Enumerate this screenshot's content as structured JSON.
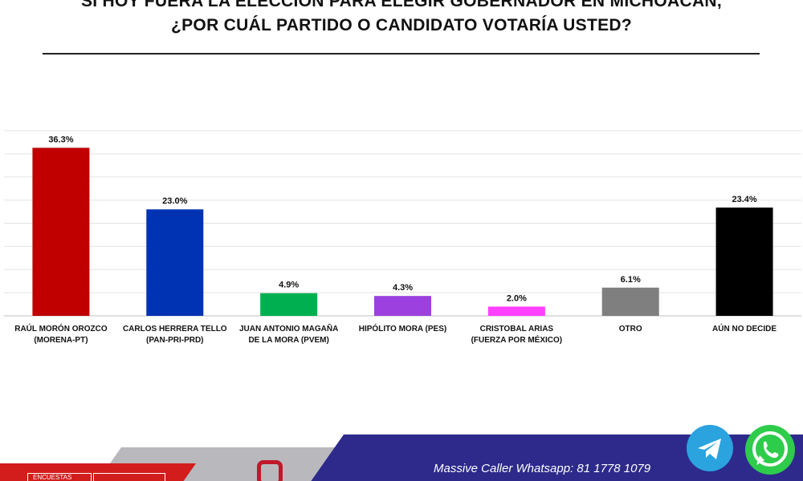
{
  "header": {
    "title_line1": "SI HOY FUERA LA ELECCIÓN PARA ELEGIR GOBERNADOR EN MICHOACÁN,",
    "title_line2": "¿POR CUÁL PARTIDO O CANDIDATO VOTARÍA USTED?"
  },
  "chart_data": {
    "type": "bar",
    "categories": [
      [
        "RAÚL MORÓN OROZCO",
        "(MORENA-PT)"
      ],
      [
        "CARLOS HERRERA TELLO",
        "(PAN-PRI-PRD)"
      ],
      [
        "JUAN ANTONIO MAGAÑA",
        "DE LA MORA (PVEM)"
      ],
      [
        "HIPÓLITO MORA (PES)"
      ],
      [
        "CRISTOBAL ARIAS",
        "(FUERZA POR MÉXICO)"
      ],
      [
        "OTRO"
      ],
      [
        "AÚN NO DECIDE"
      ]
    ],
    "values": [
      36.3,
      23.0,
      4.9,
      4.3,
      2.0,
      6.1,
      23.4
    ],
    "value_labels": [
      "36.3%",
      "23.0%",
      "4.9%",
      "4.3%",
      "2.0%",
      "6.1%",
      "23.4%"
    ],
    "colors": [
      "#c00000",
      "#0033b3",
      "#00b050",
      "#9c40e0",
      "#ff40ff",
      "#7f7f7f",
      "#000000"
    ],
    "ylim": [
      0,
      40
    ],
    "grid": true,
    "legend": "none"
  },
  "footer": {
    "badge_text": "ENCUESTAS",
    "whatsapp_text": "Massive Caller Whatsapp:  81 1778 1079"
  },
  "icons": {
    "telegram": "telegram-icon",
    "whatsapp": "whatsapp-icon"
  }
}
